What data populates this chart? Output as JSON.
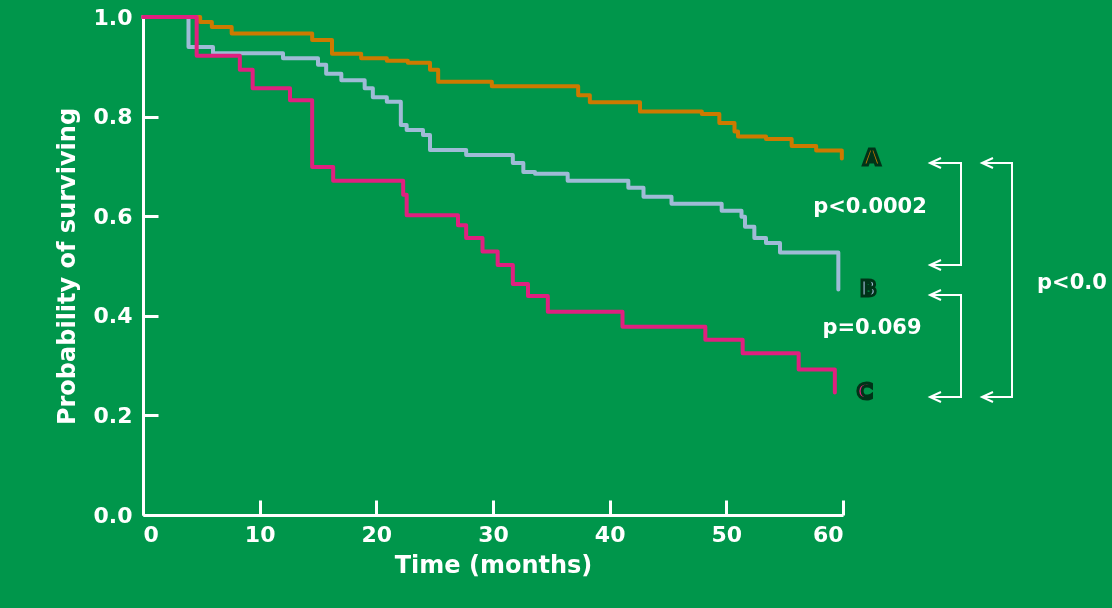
{
  "chart_data": {
    "type": "step",
    "xlabel": "Time (months)",
    "ylabel": "Probability of surviving",
    "xlim": [
      0,
      60
    ],
    "xticks": [
      0,
      10,
      20,
      30,
      40,
      50,
      60
    ],
    "ylim": [
      0,
      1
    ],
    "yticks": [
      {
        "value": 0,
        "label": "0.0"
      },
      {
        "value": 0.2,
        "label": "0.2"
      },
      {
        "value": 0.4,
        "label": "0.4"
      },
      {
        "value": 0.6,
        "label": "0.6"
      },
      {
        "value": 0.8,
        "label": "0.8"
      },
      {
        "value": 1,
        "label": "1.0"
      }
    ],
    "series": [
      {
        "name": "A",
        "color": "#cc7a00",
        "x": [
          0,
          4.9,
          5.9,
          7.6,
          14.5,
          16.2,
          18.7,
          20.9,
          22.7,
          24.6,
          25.3,
          29.9,
          37.3,
          38.3,
          42.6,
          47.9,
          49.4,
          50.7,
          51.0,
          53.4,
          55.6,
          57.7,
          59.9
        ],
        "values": [
          1,
          0.99,
          0.98,
          0.967,
          0.954,
          0.926,
          0.917,
          0.912,
          0.908,
          0.894,
          0.87,
          0.861,
          0.843,
          0.829,
          0.81,
          0.805,
          0.787,
          0.77,
          0.76,
          0.755,
          0.741,
          0.732,
          0.716
        ]
      },
      {
        "name": "B",
        "color": "#9fbbd6",
        "x": [
          0,
          3.9,
          6.0,
          12.0,
          15.0,
          15.7,
          17.0,
          19.0,
          19.7,
          20.9,
          22.1,
          22.6,
          24.0,
          24.6,
          27.7,
          31.7,
          32.6,
          33.6,
          36.4,
          41.6,
          42.9,
          45.3,
          49.6,
          51.3,
          51.6,
          52.4,
          53.4,
          54.6,
          59.6
        ],
        "values": [
          1,
          0.94,
          0.927,
          0.917,
          0.904,
          0.886,
          0.873,
          0.857,
          0.839,
          0.83,
          0.783,
          0.773,
          0.763,
          0.733,
          0.723,
          0.707,
          0.689,
          0.685,
          0.671,
          0.657,
          0.639,
          0.625,
          0.611,
          0.599,
          0.579,
          0.556,
          0.546,
          0.527,
          0.453
        ]
      },
      {
        "name": "C",
        "color": "#e0207f",
        "x": [
          0,
          4.6,
          8.3,
          9.4,
          12.6,
          14.5,
          16.3,
          22.3,
          22.6,
          27.0,
          27.7,
          29.1,
          30.4,
          31.7,
          33.0,
          34.7,
          41.1,
          48.2,
          51.4,
          56.2,
          59.3
        ],
        "values": [
          1,
          0.922,
          0.894,
          0.857,
          0.833,
          0.699,
          0.671,
          0.643,
          0.602,
          0.582,
          0.556,
          0.529,
          0.502,
          0.464,
          0.44,
          0.408,
          0.378,
          0.352,
          0.325,
          0.292,
          0.246
        ]
      }
    ],
    "annotations": [
      "p<0.0002",
      "p=0.069",
      "p<0.0"
    ]
  }
}
